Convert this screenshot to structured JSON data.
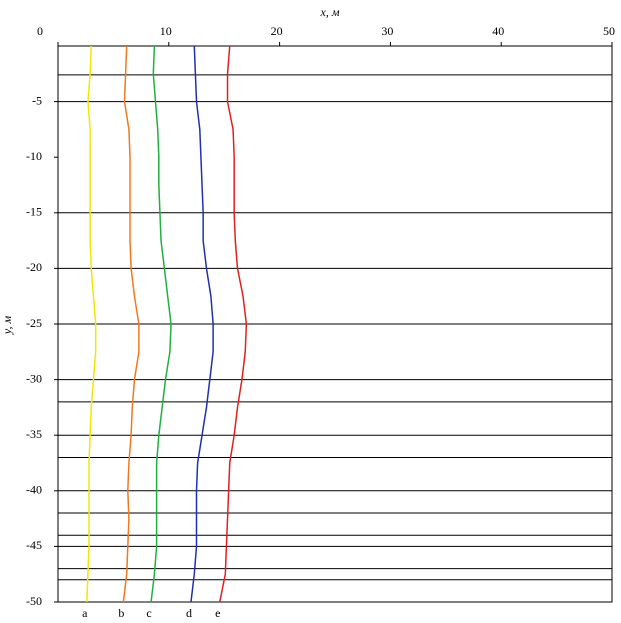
{
  "chart_data": {
    "type": "line",
    "x_label": "x, м",
    "y_label": "y, м",
    "xlim": [
      0,
      50
    ],
    "xticks": [
      0,
      10,
      20,
      30,
      40,
      50
    ],
    "ylim": [
      -50,
      0
    ],
    "yticks": [
      -5,
      -10,
      -15,
      -20,
      -25,
      -30,
      -35,
      -40,
      -45,
      -50
    ],
    "layer_boundaries": [
      -2.6,
      -5,
      -15,
      -20,
      -25,
      -30,
      -32,
      -35,
      -37,
      -40,
      -42,
      -44,
      -45,
      -47,
      -48
    ],
    "y": [
      0,
      -2.5,
      -5,
      -7.5,
      -10,
      -12.5,
      -15,
      -17.5,
      -20,
      -22.5,
      -25,
      -27.5,
      -30,
      -32.5,
      -35,
      -37.5,
      -40,
      -42.5,
      -45,
      -47.5,
      -50
    ],
    "series": [
      {
        "name": "a",
        "color": "#f0e800",
        "values": [
          3.0,
          2.9,
          2.7,
          2.9,
          2.9,
          2.9,
          2.9,
          2.9,
          3.0,
          3.2,
          3.4,
          3.4,
          3.2,
          3.0,
          2.9,
          2.8,
          2.8,
          2.8,
          2.8,
          2.7,
          2.6
        ]
      },
      {
        "name": "b",
        "color": "#f07820",
        "values": [
          6.2,
          6.1,
          6.0,
          6.4,
          6.5,
          6.5,
          6.5,
          6.5,
          6.6,
          6.9,
          7.3,
          7.3,
          6.9,
          6.7,
          6.6,
          6.4,
          6.3,
          6.4,
          6.3,
          6.2,
          5.9
        ]
      },
      {
        "name": "c",
        "color": "#20b040",
        "values": [
          8.7,
          8.6,
          8.8,
          9.0,
          9.1,
          9.1,
          9.2,
          9.3,
          9.6,
          9.9,
          10.2,
          10.1,
          9.7,
          9.4,
          9.1,
          8.9,
          8.9,
          8.9,
          8.9,
          8.7,
          8.4
        ]
      },
      {
        "name": "d",
        "color": "#2030b0",
        "values": [
          12.3,
          12.4,
          12.5,
          12.8,
          12.9,
          13.0,
          13.1,
          13.1,
          13.4,
          13.8,
          14.0,
          14.0,
          13.7,
          13.4,
          13.0,
          12.6,
          12.5,
          12.5,
          12.5,
          12.3,
          12.0
        ]
      },
      {
        "name": "e",
        "color": "#e02020",
        "values": [
          15.5,
          15.3,
          15.3,
          15.8,
          15.9,
          15.9,
          15.9,
          16.0,
          16.2,
          16.7,
          17.0,
          16.9,
          16.6,
          16.2,
          15.9,
          15.5,
          15.4,
          15.3,
          15.2,
          15.1,
          14.6
        ]
      }
    ]
  }
}
